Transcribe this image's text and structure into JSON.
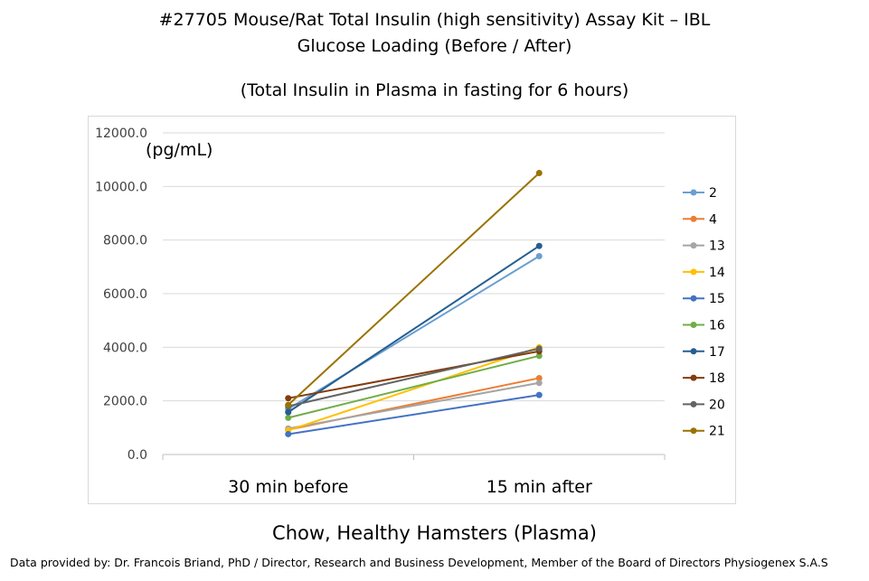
{
  "chart_data": {
    "type": "line",
    "title": "#27705 Mouse/Rat Total Insulin (high sensitivity) Assay Kit – IBL",
    "subtitle": "Glucose Loading (Before / After)",
    "subtitle2": "(Total Insulin in Plasma in fasting for 6 hours)",
    "ylabel": "(pg/mL)",
    "xlabel": "Chow, Healthy Hamsters (Plasma)",
    "categories": [
      "30 min before",
      "15 min after"
    ],
    "ylim": [
      0,
      12000
    ],
    "yticks": [
      "0.0",
      "2000.0",
      "4000.0",
      "6000.0",
      "8000.0",
      "10000.0",
      "12000.0"
    ],
    "legend_position": "right",
    "grid": true,
    "series": [
      {
        "name": "2",
        "color": "#6a9fd0",
        "values": [
          1700,
          7400
        ]
      },
      {
        "name": "4",
        "color": "#ed7d31",
        "values": [
          920,
          2850
        ]
      },
      {
        "name": "13",
        "color": "#a5a5a5",
        "values": [
          970,
          2670
        ]
      },
      {
        "name": "14",
        "color": "#ffc000",
        "values": [
          900,
          4000
        ]
      },
      {
        "name": "15",
        "color": "#4472c4",
        "values": [
          760,
          2220
        ]
      },
      {
        "name": "16",
        "color": "#70ad47",
        "values": [
          1370,
          3680
        ]
      },
      {
        "name": "17",
        "color": "#255e91",
        "values": [
          1580,
          7780
        ]
      },
      {
        "name": "18",
        "color": "#843c0c",
        "values": [
          2100,
          3850
        ]
      },
      {
        "name": "20",
        "color": "#636363",
        "values": [
          1800,
          3950
        ]
      },
      {
        "name": "21",
        "color": "#997300",
        "values": [
          1850,
          10500
        ]
      }
    ]
  },
  "footer": {
    "credit": "Data provided by: Dr. Francois Briand, PhD / Director, Research and Business Development, Member  of the Board of Directors Physiogenex S.A.S"
  }
}
